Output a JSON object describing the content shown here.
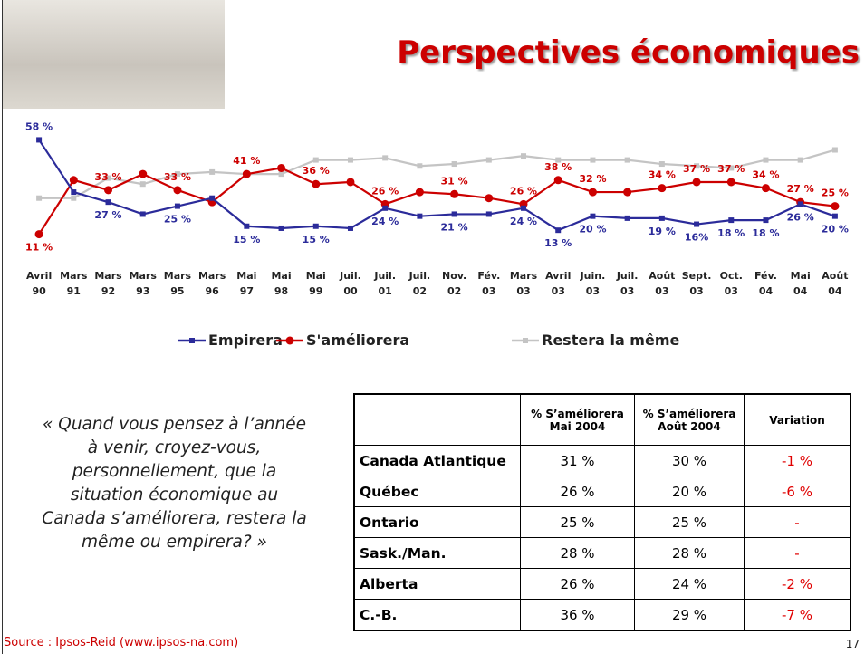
{
  "chart_data": {
    "type": "line",
    "title": "Perspectives économiques",
    "categories": [
      "Avril 90",
      "Mars 91",
      "Mars 92",
      "Mars 93",
      "Mars 95",
      "Mars 96",
      "Mai 97",
      "Mai 98",
      "Mai 99",
      "Juil. 00",
      "Juil. 01",
      "Juil. 02",
      "Nov. 02",
      "Fév. 03",
      "Mars 03",
      "Avril 03",
      "Juin. 03",
      "Juil. 03",
      "Août 03",
      "Sept. 03",
      "Oct. 03",
      "Fév. 04",
      "Mai 04",
      "Août 04"
    ],
    "series": [
      {
        "name": "Empirera",
        "color": "#2b2b9a",
        "marker": "square",
        "values": [
          58,
          32,
          27,
          21,
          25,
          29,
          15,
          14,
          15,
          14,
          24,
          20,
          21,
          21,
          24,
          13,
          20,
          19,
          19,
          16,
          18,
          18,
          26,
          20
        ],
        "value_labels": [
          "58 %",
          null,
          "27 %",
          null,
          "25 %",
          null,
          "15 %",
          null,
          "15 %",
          null,
          "24 %",
          null,
          "21 %",
          null,
          "24 %",
          "13 %",
          "20 %",
          null,
          "19 %",
          "16%",
          "18 %",
          "18 %",
          "26 %",
          "20 %"
        ]
      },
      {
        "name": "S'améliorera",
        "color": "#cc0000",
        "marker": "circle",
        "values": [
          11,
          38,
          33,
          41,
          33,
          27,
          41,
          44,
          36,
          37,
          26,
          32,
          31,
          29,
          26,
          38,
          32,
          32,
          34,
          37,
          37,
          34,
          27,
          25
        ],
        "value_labels": [
          "11 %",
          null,
          "33 %",
          null,
          "33 %",
          null,
          "41 %",
          null,
          "36 %",
          null,
          "26 %",
          null,
          "31 %",
          null,
          "26 %",
          "38 %",
          "32 %",
          null,
          "34 %",
          "37 %",
          "37 %",
          "34 %",
          "27 %",
          "25 %"
        ]
      },
      {
        "name": "Restera la même",
        "color": "#c4c4c4",
        "marker": "square",
        "values": [
          29,
          29,
          39,
          36,
          41,
          42,
          41,
          41,
          48,
          48,
          49,
          45,
          46,
          48,
          50,
          48,
          48,
          48,
          46,
          45,
          44,
          48,
          48,
          53
        ]
      }
    ],
    "ylim": [
      0,
      60
    ]
  },
  "quote": "« Quand vous pensez à l’année à venir, croyez-vous, personnellement, que la situation économique au Canada s’améliorera, restera la même ou empirera? »",
  "table": {
    "header": [
      "% S’améliorera Mai 2004",
      "% S’améliorera Août 2004",
      "Variation"
    ],
    "rows": [
      [
        "Canada Atlantique",
        "31 %",
        "30 %",
        "-1 %"
      ],
      [
        "Québec",
        "26 %",
        "20 %",
        "-6 %"
      ],
      [
        "Ontario",
        "25 %",
        "25 %",
        "-"
      ],
      [
        "Sask./Man.",
        "28 %",
        "28 %",
        "-"
      ],
      [
        "Alberta",
        "26 %",
        "24 %",
        "-2 %"
      ],
      [
        "C.-B.",
        "36 %",
        "29 %",
        "-7 %"
      ]
    ]
  },
  "footer": {
    "source": "Source : Ipsos-Reid (www.ipsos-na.com)",
    "page": 17
  }
}
